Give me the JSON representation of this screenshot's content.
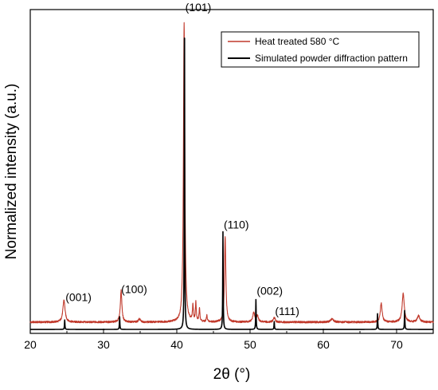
{
  "chart_data": {
    "type": "line",
    "xlabel": "2θ (°)",
    "ylabel": "Normalized intensity (a.u.)",
    "xlim": [
      20,
      75
    ],
    "ylim": [
      0,
      1.0
    ],
    "x_ticks": [
      20,
      30,
      40,
      50,
      60,
      70
    ],
    "x_tick_labels": [
      "20",
      "30",
      "40",
      "50",
      "60",
      "70"
    ],
    "y_ticks_labeled": false,
    "grid": false,
    "legend_position": "top-right",
    "legend_labels": [
      "Heat treated 580 °C",
      "Simulated powder diffraction pattern"
    ],
    "series": [
      {
        "name": "Heat treated 580 °C",
        "color": "#c0392b",
        "baseline": 0.028,
        "noise": 0.003,
        "peaks": [
          {
            "x": 24.6,
            "height": 0.07,
            "width": 0.35
          },
          {
            "x": 32.4,
            "height": 0.1,
            "width": 0.25
          },
          {
            "x": 34.9,
            "height": 0.01,
            "width": 0.3
          },
          {
            "x": 41.0,
            "height": 0.95,
            "width": 0.22
          },
          {
            "x": 42.2,
            "height": 0.05,
            "width": 0.15
          },
          {
            "x": 42.6,
            "height": 0.06,
            "width": 0.14
          },
          {
            "x": 43.1,
            "height": 0.04,
            "width": 0.15
          },
          {
            "x": 44.1,
            "height": 0.02,
            "width": 0.15
          },
          {
            "x": 46.6,
            "height": 0.27,
            "width": 0.22
          },
          {
            "x": 50.5,
            "height": 0.03,
            "width": 0.3
          },
          {
            "x": 51.0,
            "height": 0.02,
            "width": 0.3
          },
          {
            "x": 53.3,
            "height": 0.015,
            "width": 0.3
          },
          {
            "x": 61.2,
            "height": 0.01,
            "width": 0.5
          },
          {
            "x": 67.9,
            "height": 0.06,
            "width": 0.3
          },
          {
            "x": 70.9,
            "height": 0.09,
            "width": 0.35
          },
          {
            "x": 73.0,
            "height": 0.02,
            "width": 0.4
          }
        ]
      },
      {
        "name": "Simulated powder diffraction pattern",
        "color": "#000000",
        "baseline": 0.005,
        "noise": 0,
        "peaks": [
          {
            "x": 24.7,
            "height": 0.03,
            "width": 0.07
          },
          {
            "x": 32.2,
            "height": 0.04,
            "width": 0.07
          },
          {
            "x": 41.05,
            "height": 1.0,
            "width": 0.07
          },
          {
            "x": 46.3,
            "height": 0.31,
            "width": 0.07
          },
          {
            "x": 50.8,
            "height": 0.095,
            "width": 0.07
          },
          {
            "x": 53.3,
            "height": 0.025,
            "width": 0.07
          },
          {
            "x": 67.4,
            "height": 0.05,
            "width": 0.07
          },
          {
            "x": 71.1,
            "height": 0.06,
            "width": 0.07
          }
        ]
      }
    ],
    "annotations": [
      {
        "text": "(001)",
        "x": 24.7,
        "y": 0.085
      },
      {
        "text": "(100)",
        "x": 32.3,
        "y": 0.11
      },
      {
        "text": "(101)",
        "x": 41.05,
        "y": 1.005
      },
      {
        "text": "(110)",
        "x": 46.3,
        "y": 0.315
      },
      {
        "text": "(002)",
        "x": 50.8,
        "y": 0.105
      },
      {
        "text": "(111)",
        "x": 53.3,
        "y": 0.04
      }
    ]
  }
}
